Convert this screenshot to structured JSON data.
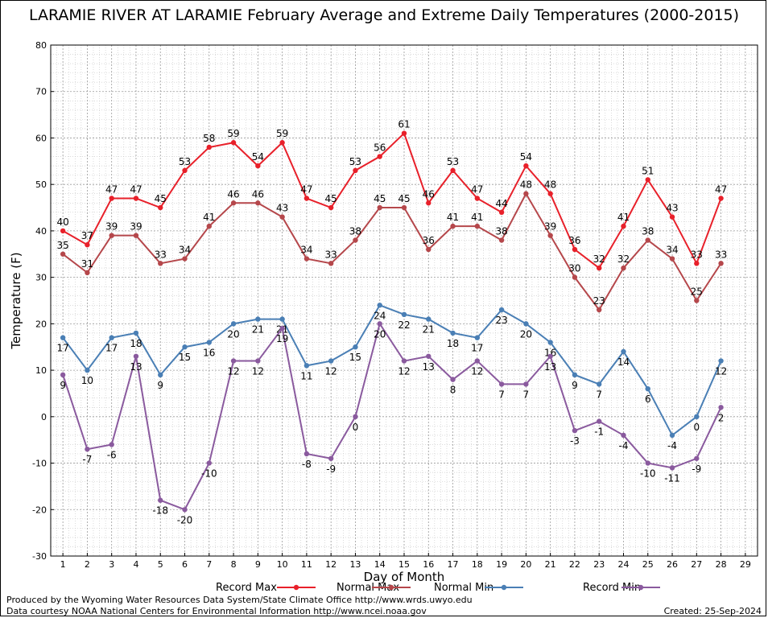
{
  "title": "LARAMIE RIVER AT LARAMIE February Average and Extreme Daily Temperatures (2000-2015)",
  "footer": {
    "credit_line1": "Produced by the Wyoming Water Resources Data System/State Climate Office http://www.wrds.uwyo.edu",
    "credit_line2": "Data courtesy NOAA National Centers for Environmental Information http://www.ncei.noaa.gov",
    "created": "Created:  25-Sep-2024"
  },
  "chart_data": {
    "type": "line",
    "title": "LARAMIE RIVER AT LARAMIE February Average and Extreme Daily Temperatures (2000-2015)",
    "xlabel": "Day of Month",
    "ylabel": "Temperature (F)",
    "xlim": [
      0.5,
      29.5
    ],
    "ylim": [
      -30,
      80
    ],
    "x_ticks": [
      1,
      2,
      3,
      4,
      5,
      6,
      7,
      8,
      9,
      10,
      11,
      12,
      13,
      14,
      15,
      16,
      17,
      18,
      19,
      20,
      21,
      22,
      23,
      24,
      25,
      26,
      27,
      28,
      29
    ],
    "y_ticks": [
      -30,
      -20,
      -10,
      0,
      10,
      20,
      30,
      40,
      50,
      60,
      70,
      80
    ],
    "grid": true,
    "legend_position": "bottom",
    "x": [
      1,
      2,
      3,
      4,
      5,
      6,
      7,
      8,
      9,
      10,
      11,
      12,
      13,
      14,
      15,
      16,
      17,
      18,
      19,
      20,
      21,
      22,
      23,
      24,
      25,
      26,
      27,
      28
    ],
    "series": [
      {
        "name": "Record Max",
        "color": "#e8202a",
        "label_position": "above",
        "values": [
          40,
          37,
          47,
          47,
          45,
          53,
          58,
          59,
          54,
          59,
          47,
          45,
          53,
          56,
          61,
          46,
          53,
          47,
          44,
          54,
          48,
          36,
          32,
          41,
          51,
          43,
          33,
          47
        ]
      },
      {
        "name": "Normal Max",
        "color": "#b5474b",
        "label_position": "above",
        "values": [
          35,
          31,
          39,
          39,
          33,
          34,
          41,
          46,
          46,
          43,
          34,
          33,
          38,
          45,
          45,
          36,
          41,
          41,
          38,
          48,
          39,
          30,
          23,
          32,
          38,
          34,
          25,
          33
        ]
      },
      {
        "name": "Normal Min",
        "color": "#4a7fb5",
        "label_position": "below",
        "values": [
          17,
          10,
          17,
          18,
          9,
          15,
          16,
          20,
          21,
          21,
          11,
          12,
          15,
          24,
          22,
          21,
          18,
          17,
          23,
          20,
          16,
          9,
          7,
          14,
          6,
          -4,
          0,
          12
        ]
      },
      {
        "name": "Record Min",
        "color": "#8a5a9e",
        "label_position": "below",
        "values": [
          9,
          -7,
          -6,
          13,
          -18,
          -20,
          -10,
          12,
          12,
          19,
          -8,
          -9,
          0,
          20,
          12,
          13,
          8,
          12,
          7,
          7,
          13,
          -3,
          -1,
          -4,
          -10,
          -11,
          -9,
          2
        ]
      }
    ]
  }
}
